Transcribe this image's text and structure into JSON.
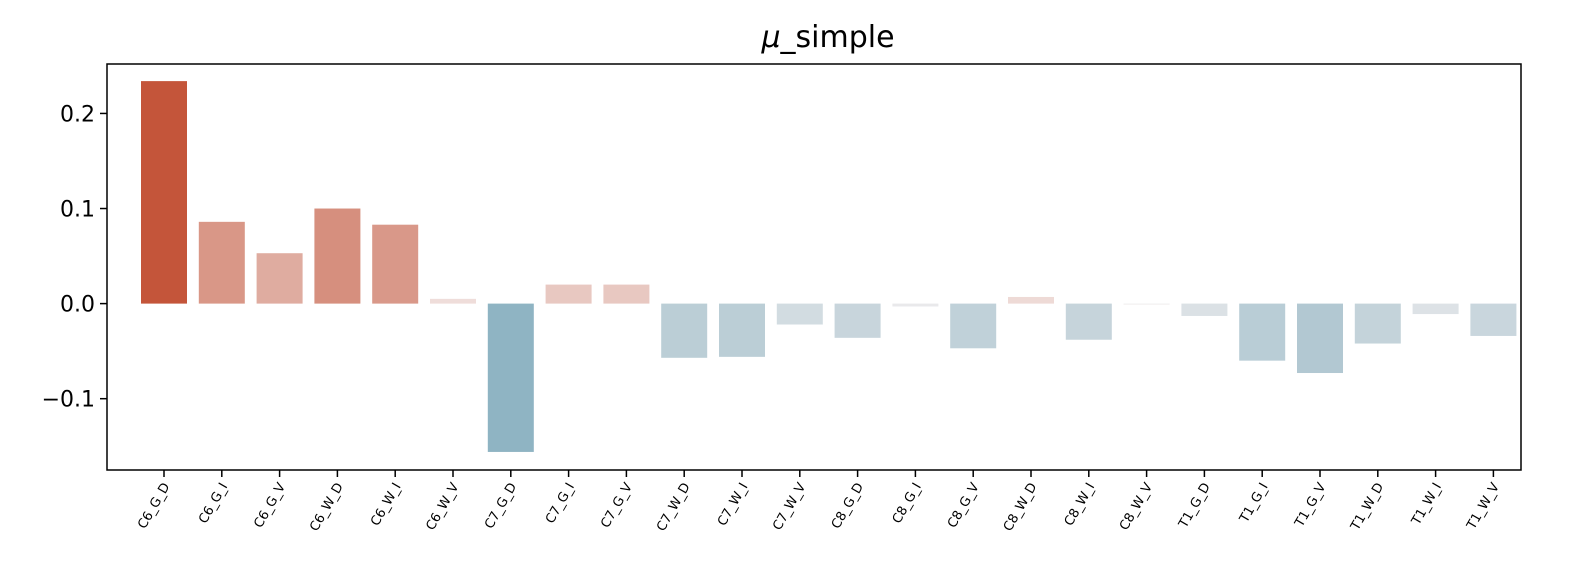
{
  "chart_data": {
    "type": "bar",
    "title_symbol": "μ",
    "title_rest": "_simple",
    "categories": [
      "C6_G_D",
      "C6_G_I",
      "C6_G_V",
      "C6_W_D",
      "C6_W_I",
      "C6_W_V",
      "C7_G_D",
      "C7_G_I",
      "C7_G_V",
      "C7_W_D",
      "C7_W_I",
      "C7_W_V",
      "C8_G_D",
      "C8_G_I",
      "C8_G_V",
      "C8_W_D",
      "C8_W_I",
      "C8_W_V",
      "T1_G_D",
      "T1_G_I",
      "T1_G_V",
      "T1_W_D",
      "T1_W_I",
      "T1_W_V"
    ],
    "values": [
      0.234,
      0.086,
      0.053,
      0.1,
      0.083,
      0.005,
      -0.156,
      0.02,
      0.02,
      -0.057,
      -0.056,
      -0.022,
      -0.036,
      -0.003,
      -0.047,
      0.007,
      -0.038,
      -0.001,
      -0.013,
      -0.06,
      -0.073,
      -0.042,
      -0.011,
      -0.034
    ],
    "yticks": [
      -0.1,
      0.0,
      0.1,
      0.2
    ],
    "ytick_labels": [
      "−0.1",
      "0.0",
      "0.1",
      "0.2"
    ],
    "ylim": [
      -0.175,
      0.252
    ],
    "xlabel": "",
    "ylabel": "",
    "grid": false,
    "colors": {
      "positive": "#c4553a",
      "negative": "#76a5b8",
      "neutral": "#f5f0f0"
    }
  }
}
